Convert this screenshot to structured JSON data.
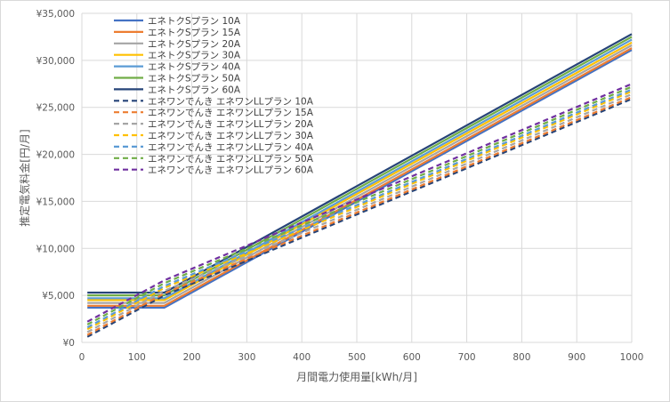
{
  "chart_data": {
    "type": "line",
    "title": "",
    "xlabel": "月間電力使用量[kWh/月]",
    "ylabel": "推定電気料金[円/月]",
    "xlim": [
      0,
      1000
    ],
    "ylim": [
      0,
      35000
    ],
    "x_ticks": [
      "0",
      "100",
      "200",
      "300",
      "400",
      "500",
      "600",
      "700",
      "800",
      "900",
      "1000"
    ],
    "y_ticks": [
      "¥0",
      "¥5,000",
      "¥10,000",
      "¥15,000",
      "¥20,000",
      "¥25,000",
      "¥30,000",
      "¥35,000"
    ],
    "grid": true,
    "legend_position": "top-left",
    "x": [
      10,
      150,
      1000
    ],
    "series": [
      {
        "name": "エネトクSプラン 10A",
        "color": "#4472C4",
        "dash": false,
        "values": [
          3700,
          3700,
          31100
        ]
      },
      {
        "name": "エネトクSプラン 15A",
        "color": "#ED7D31",
        "dash": false,
        "values": [
          3900,
          3900,
          31300
        ]
      },
      {
        "name": "エネトクSプラン 20A",
        "color": "#A5A5A5",
        "dash": false,
        "values": [
          4200,
          4200,
          31600
        ]
      },
      {
        "name": "エネトクSプラン 30A",
        "color": "#FFC000",
        "dash": false,
        "values": [
          4500,
          4500,
          31900
        ]
      },
      {
        "name": "エネトクSプラン 40A",
        "color": "#5B9BD5",
        "dash": false,
        "values": [
          4700,
          4700,
          32200
        ]
      },
      {
        "name": "エネトクSプラン 50A",
        "color": "#70AD47",
        "dash": false,
        "values": [
          5000,
          5000,
          32500
        ]
      },
      {
        "name": "エネトクSプラン 60A",
        "color": "#264478",
        "dash": false,
        "values": [
          5300,
          5300,
          32800
        ]
      },
      {
        "name": "エネワンでんき エネワンLLプラン 10A",
        "color": "#264478",
        "dash": true,
        "values": [
          600,
          5000,
          25900
        ]
      },
      {
        "name": "エネワンでんき エネワンLLプラン 15A",
        "color": "#ED7D31",
        "dash": true,
        "values": [
          800,
          5200,
          26100
        ]
      },
      {
        "name": "エネワンでんき エネワンLLプラン 20A",
        "color": "#A5A5A5",
        "dash": true,
        "values": [
          1100,
          5500,
          26400
        ]
      },
      {
        "name": "エネワンでんき エネワンLLプラン 30A",
        "color": "#FFC000",
        "dash": true,
        "values": [
          1400,
          5800,
          26700
        ]
      },
      {
        "name": "エネワンでんき エネワンLLプラン 40A",
        "color": "#5B9BD5",
        "dash": true,
        "values": [
          1600,
          6000,
          26900
        ]
      },
      {
        "name": "エネワンでんき エネワンLLプラン 50A",
        "color": "#70AD47",
        "dash": true,
        "values": [
          1900,
          6300,
          27200
        ]
      },
      {
        "name": "エネワンでんき エネワンLLプラン 60A",
        "color": "#7030A0",
        "dash": true,
        "values": [
          2200,
          6600,
          27500
        ]
      }
    ]
  }
}
